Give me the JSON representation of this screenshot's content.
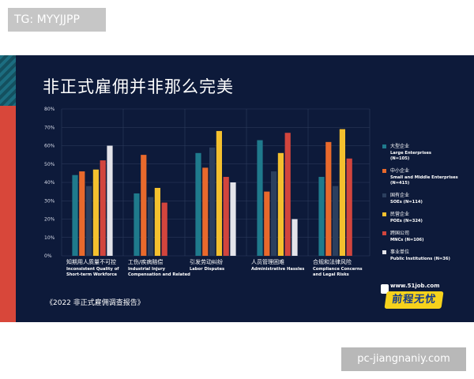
{
  "watermark_top": "TG: MYYJJPP",
  "watermark_bottom": "pc-jiangnaniy.com",
  "slide": {
    "title": "非正式雇佣并非那么完美",
    "source": "《2022 非正式雇佣调查报告》",
    "logo_url": "www.51job.com",
    "logo_text": "前程无忧"
  },
  "chart_data": {
    "type": "bar",
    "title": "非正式雇佣并非那么完美",
    "ylim": [
      0,
      80
    ],
    "yticks": [
      "0%",
      "10%",
      "20%",
      "30%",
      "40%",
      "50%",
      "60%",
      "70%",
      "80%"
    ],
    "grid": true,
    "legend_position": "right",
    "categories": [
      {
        "cn": "知期用人质量不可控",
        "en1": "Inconsistent Quality of",
        "en2": "Short-term Workforce"
      },
      {
        "cn": "工伤/疾病赔偿",
        "en1": "Industrial Injury",
        "en2": "Compensation and Related"
      },
      {
        "cn": "引发劳动纠纷",
        "en1": "Labor Disputes",
        "en2": ""
      },
      {
        "cn": "人员管理困难",
        "en1": "Administrative Hassles",
        "en2": ""
      },
      {
        "cn": "合规和法律风险",
        "en1": "Compliance Concerns",
        "en2": "and Legal Risks"
      }
    ],
    "series": [
      {
        "name": "大型企业",
        "name_en": "Large Enterprises",
        "n": "(N=105)",
        "color": "#1f7a8c",
        "values": [
          44,
          34,
          56,
          63,
          43
        ]
      },
      {
        "name": "中小企业",
        "name_en": "Small and Middle Enterprises",
        "n": "(N=415)",
        "color": "#e8692c",
        "values": [
          46,
          55,
          48,
          35,
          62
        ]
      },
      {
        "name": "国有企业",
        "name_en": "SOEs (N=114)",
        "n": "",
        "color": "#2b3f5e",
        "values": [
          38,
          32,
          59,
          46,
          38
        ]
      },
      {
        "name": "民营企业",
        "name_en": "POEs (N=324)",
        "n": "",
        "color": "#f4c02e",
        "values": [
          47,
          37,
          68,
          56,
          69
        ]
      },
      {
        "name": "跨国公司",
        "name_en": "MNCs (N=106)",
        "n": "",
        "color": "#d2453d",
        "values": [
          52,
          29,
          43,
          67,
          53
        ]
      },
      {
        "name": "事业单位",
        "name_en": "Public Institutions (N=36)",
        "n": "",
        "color": "#e4e4ea",
        "values": [
          60,
          0,
          40,
          20,
          0
        ]
      }
    ]
  }
}
